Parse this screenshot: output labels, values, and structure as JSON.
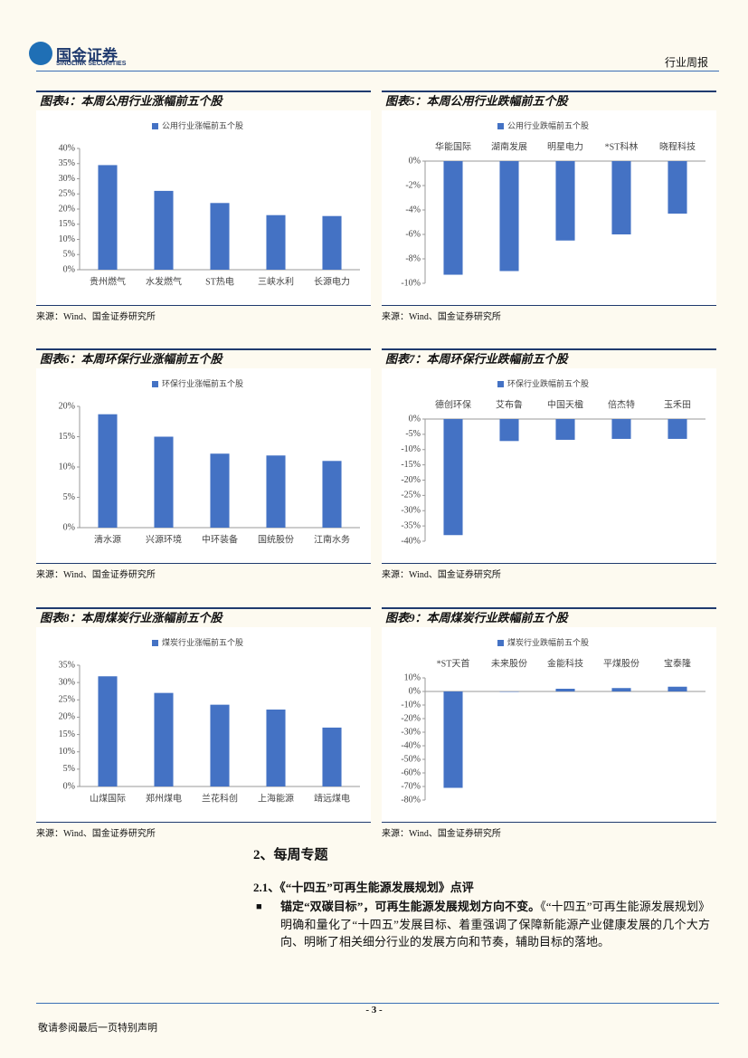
{
  "header": {
    "logo": "国金证券",
    "logo_en": "SINOLINK SECURITIES",
    "report_type": "行业周报"
  },
  "chart_data": [
    {
      "type": "bar",
      "title": "图表4：本周公用行业涨幅前五个股",
      "source": "来源：Wind、国金证券研究所",
      "x_labels": "bottom",
      "categories": [
        "贵州燃气",
        "水发燃气",
        "ST热电",
        "三峡水利",
        "长源电力"
      ],
      "series": [
        {
          "name": "公用行业涨幅前五个股",
          "color": "#4472c4",
          "values": [
            34.5,
            26,
            22,
            18,
            17.7
          ]
        }
      ],
      "ylim": [
        0,
        40
      ],
      "yticks": [
        {
          "value": 0,
          "label": "0%"
        },
        {
          "value": 5,
          "label": "5%"
        },
        {
          "value": 10,
          "label": "10%"
        },
        {
          "value": 15,
          "label": "15%"
        },
        {
          "value": 20,
          "label": "20%"
        },
        {
          "value": 25,
          "label": "25%"
        },
        {
          "value": 30,
          "label": "30%"
        },
        {
          "value": 35,
          "label": "35%"
        },
        {
          "value": 40,
          "label": "40%"
        }
      ]
    },
    {
      "type": "bar",
      "title": "图表5：本周公用行业跌幅前五个股",
      "source": "来源：Wind、国金证券研究所",
      "x_labels": "top",
      "categories": [
        "华能国际",
        "湖南发展",
        "明星电力",
        "*ST科林",
        "晓程科技"
      ],
      "series": [
        {
          "name": "公用行业跌幅前五个股",
          "color": "#4472c4",
          "values": [
            -9.3,
            -9.0,
            -6.5,
            -6.0,
            -4.3
          ]
        }
      ],
      "ylim": [
        -10,
        0
      ],
      "yticks": [
        {
          "value": 0,
          "label": "0%"
        },
        {
          "value": -2,
          "label": "-2%"
        },
        {
          "value": -4,
          "label": "-4%"
        },
        {
          "value": -6,
          "label": "-6%"
        },
        {
          "value": -8,
          "label": "-8%"
        },
        {
          "value": -10,
          "label": "-10%"
        }
      ]
    },
    {
      "type": "bar",
      "title": "图表6：本周环保行业涨幅前五个股",
      "source": "来源：Wind、国金证券研究所",
      "x_labels": "bottom",
      "categories": [
        "清水源",
        "兴源环境",
        "中环装备",
        "国统股份",
        "江南水务"
      ],
      "series": [
        {
          "name": "环保行业涨幅前五个股",
          "color": "#4472c4",
          "values": [
            18.7,
            15,
            12.2,
            11.9,
            11
          ]
        }
      ],
      "ylim": [
        0,
        20
      ],
      "yticks": [
        {
          "value": 0,
          "label": "0%"
        },
        {
          "value": 5,
          "label": "5%"
        },
        {
          "value": 10,
          "label": "10%"
        },
        {
          "value": 15,
          "label": "15%"
        },
        {
          "value": 20,
          "label": "20%"
        }
      ]
    },
    {
      "type": "bar",
      "title": "图表7：本周环保行业跌幅前五个股",
      "source": "来源：Wind、国金证券研究所",
      "x_labels": "top",
      "categories": [
        "德创环保",
        "艾布鲁",
        "中国天楹",
        "倍杰特",
        "玉禾田"
      ],
      "series": [
        {
          "name": "环保行业跌幅前五个股",
          "color": "#4472c4",
          "values": [
            -38,
            -7.2,
            -6.8,
            -6.5,
            -6.5
          ]
        }
      ],
      "ylim": [
        -40,
        0
      ],
      "yticks": [
        {
          "value": 0,
          "label": "0%"
        },
        {
          "value": -5,
          "label": "-5%"
        },
        {
          "value": -10,
          "label": "-10%"
        },
        {
          "value": -15,
          "label": "-15%"
        },
        {
          "value": -20,
          "label": "-20%"
        },
        {
          "value": -25,
          "label": "-25%"
        },
        {
          "value": -30,
          "label": "-30%"
        },
        {
          "value": -35,
          "label": "-35%"
        },
        {
          "value": -40,
          "label": "-40%"
        }
      ]
    },
    {
      "type": "bar",
      "title": "图表8：本周煤炭行业涨幅前五个股",
      "source": "来源：Wind、国金证券研究所",
      "x_labels": "bottom",
      "categories": [
        "山煤国际",
        "郑州煤电",
        "兰花科创",
        "上海能源",
        "靖远煤电"
      ],
      "series": [
        {
          "name": "煤炭行业涨幅前五个股",
          "color": "#4472c4",
          "values": [
            31.8,
            27,
            23.6,
            22.2,
            17
          ]
        }
      ],
      "ylim": [
        0,
        35
      ],
      "yticks": [
        {
          "value": 0,
          "label": "0%"
        },
        {
          "value": 5,
          "label": "5%"
        },
        {
          "value": 10,
          "label": "10%"
        },
        {
          "value": 15,
          "label": "15%"
        },
        {
          "value": 20,
          "label": "20%"
        },
        {
          "value": 25,
          "label": "25%"
        },
        {
          "value": 30,
          "label": "30%"
        },
        {
          "value": 35,
          "label": "35%"
        }
      ]
    },
    {
      "type": "bar",
      "title": "图表9：本周煤炭行业跌幅前五个股",
      "source": "来源：Wind、国金证券研究所",
      "x_labels": "top",
      "categories": [
        "*ST天首",
        "未来股份",
        "金能科技",
        "平煤股份",
        "宝泰隆"
      ],
      "series": [
        {
          "name": "煤炭行业跌幅前五个股",
          "color": "#4472c4",
          "values": [
            -71,
            -0.3,
            2,
            2.5,
            3.5
          ]
        }
      ],
      "ylim": [
        -80,
        10
      ],
      "yticks": [
        {
          "value": 10,
          "label": "10%"
        },
        {
          "value": 0,
          "label": "0%"
        },
        {
          "value": -10,
          "label": "-10%"
        },
        {
          "value": -20,
          "label": "-20%"
        },
        {
          "value": -30,
          "label": "-30%"
        },
        {
          "value": -40,
          "label": "-40%"
        },
        {
          "value": -50,
          "label": "-50%"
        },
        {
          "value": -60,
          "label": "-60%"
        },
        {
          "value": -70,
          "label": "-70%"
        },
        {
          "value": -80,
          "label": "-80%"
        }
      ]
    }
  ],
  "section": {
    "heading": "2、每周专题",
    "subheading": "2.1、《“十四五”可再生能源发展规划》点评",
    "bullet_lead": "锚定“双碳目标”，可再生能源发展规划方向不变。",
    "bullet_text": "《“十四五”可再生能源发展规划》明确和量化了“十四五”发展目标、着重强调了保障新能源产业健康发展的几个大方向、明晰了相关细分行业的发展方向和节奏，辅助目标的落地。"
  },
  "footer": {
    "page": "- 3 -",
    "disclaimer": "敬请参阅最后一页特别声明"
  }
}
